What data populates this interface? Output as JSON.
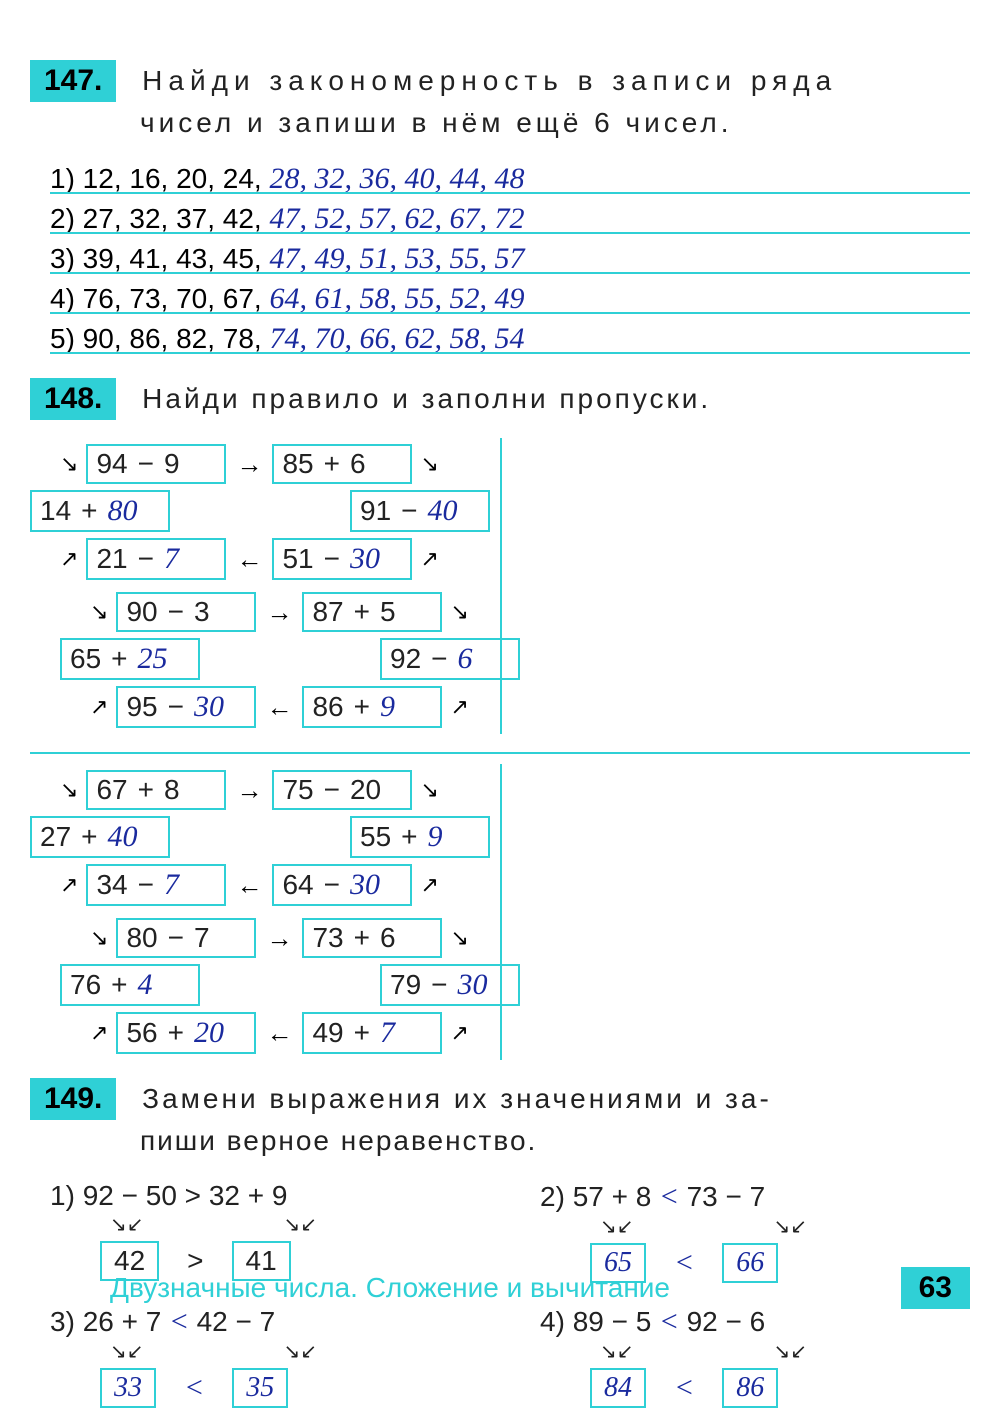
{
  "page_number": "63",
  "footer_title": "Двузначные числа. Сложение и вычитание",
  "q147": {
    "num": "147.",
    "prompt1": "Найди закономерность в записи ряда",
    "prompt2": "чисел и запиши в нём ещё 6 чисел.",
    "rows": [
      {
        "n": "1)",
        "given": "12, 16, 20, 24,",
        "ans": "28, 32, 36, 40, 44, 48"
      },
      {
        "n": "2)",
        "given": "27, 32, 37, 42,",
        "ans": "47, 52, 57, 62, 67, 72"
      },
      {
        "n": "3)",
        "given": "39, 41, 43, 45,",
        "ans": "47, 49, 51, 53, 55, 57"
      },
      {
        "n": "4)",
        "given": "76, 73, 70, 67,",
        "ans": "64, 61, 58, 55, 52, 49"
      },
      {
        "n": "5)",
        "given": "90, 86, 82, 78,",
        "ans": "74, 70, 66, 62, 58, 54"
      }
    ]
  },
  "q148": {
    "num": "148.",
    "prompt": "Найди правило и заполни пропуски.",
    "groups": [
      {
        "left": {
          "top": [
            {
              "a": "94",
              "op": "−",
              "b": "9"
            },
            {
              "a": "85",
              "op": "+",
              "b": "6"
            }
          ],
          "mid": [
            {
              "a": "14",
              "op": "+",
              "b": "80",
              "hb": true
            },
            {
              "a": "91",
              "op": "−",
              "b": "40",
              "hb": true
            }
          ],
          "bot": [
            {
              "a": "21",
              "op": "−",
              "b": "7",
              "hb": true
            },
            {
              "a": "51",
              "op": "−",
              "b": "30",
              "hb": true
            }
          ]
        },
        "right": {
          "top": [
            {
              "a": "90",
              "op": "−",
              "b": "3"
            },
            {
              "a": "87",
              "op": "+",
              "b": "5"
            }
          ],
          "mid": [
            {
              "a": "65",
              "op": "+",
              "b": "25",
              "hb": true
            },
            {
              "a": "92",
              "op": "−",
              "b": "6",
              "hb": true
            }
          ],
          "bot": [
            {
              "a": "95",
              "op": "−",
              "b": "30",
              "hb": true
            },
            {
              "a": "86",
              "op": "+",
              "b": "9",
              "hb": true
            }
          ]
        }
      },
      {
        "left": {
          "top": [
            {
              "a": "67",
              "op": "+",
              "b": "8"
            },
            {
              "a": "75",
              "op": "−",
              "b": "20"
            }
          ],
          "mid": [
            {
              "a": "27",
              "op": "+",
              "b": "40",
              "hb": true
            },
            {
              "a": "55",
              "op": "+",
              "b": "9",
              "hb": true
            }
          ],
          "bot": [
            {
              "a": "34",
              "op": "−",
              "b": "7",
              "hb": true
            },
            {
              "a": "64",
              "op": "−",
              "b": "30",
              "hb": true
            }
          ]
        },
        "right": {
          "top": [
            {
              "a": "80",
              "op": "−",
              "b": "7"
            },
            {
              "a": "73",
              "op": "+",
              "b": "6"
            }
          ],
          "mid": [
            {
              "a": "76",
              "op": "+",
              "b": "4",
              "hb": true
            },
            {
              "a": "79",
              "op": "−",
              "b": "30",
              "hb": true
            }
          ],
          "bot": [
            {
              "a": "56",
              "op": "+",
              "b": "20",
              "hb": true
            },
            {
              "a": "49",
              "op": "+",
              "b": "7",
              "hb": true
            }
          ]
        }
      }
    ]
  },
  "q149": {
    "num": "149.",
    "prompt1": "Замени выражения их значениями и за-",
    "prompt2": "пиши верное неравенство.",
    "items": [
      {
        "n": "1)",
        "lhs": "92 − 50",
        "cmp": ">",
        "rhs": "32 + 9",
        "lv": "42",
        "cmp2": ">",
        "rv": "41",
        "lv_hand": false,
        "rv_hand": false
      },
      {
        "n": "2)",
        "lhs": "57 + 8",
        "cmp": "<",
        "rhs": "73 − 7",
        "lv": "65",
        "cmp2": "<",
        "rv": "66",
        "lv_hand": true,
        "rv_hand": true
      },
      {
        "n": "3)",
        "lhs": "26 + 7",
        "cmp": "<",
        "rhs": "42 − 7",
        "lv": "33",
        "cmp2": "<",
        "rv": "35",
        "lv_hand": true,
        "rv_hand": true
      },
      {
        "n": "4)",
        "lhs": "89 − 5",
        "cmp": "<",
        "rhs": "92 − 6",
        "lv": "84",
        "cmp2": "<",
        "rv": "86",
        "lv_hand": true,
        "rv_hand": true
      }
    ]
  }
}
